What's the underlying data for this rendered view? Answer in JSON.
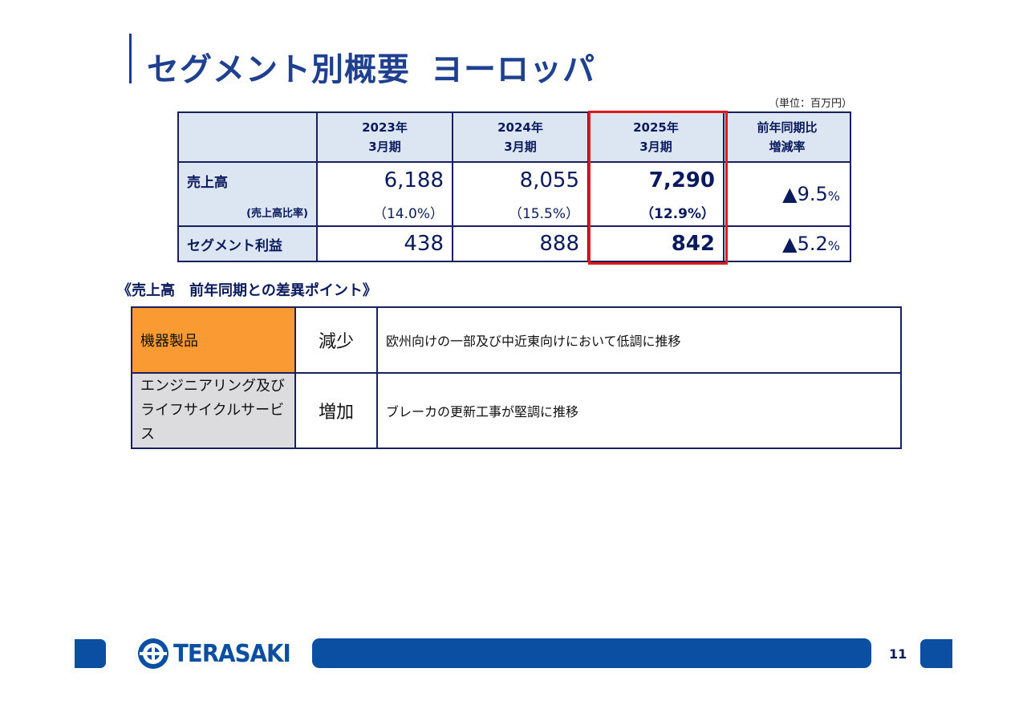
{
  "title": {
    "main": "セグメント別概要",
    "sub": "ヨーロッパ"
  },
  "unit_note": "（単位：百万円）",
  "table": {
    "headers": [
      {
        "line1": "2023年",
        "line2": "3月期"
      },
      {
        "line1": "2024年",
        "line2": "3月期"
      },
      {
        "line1": "2025年",
        "line2": "3月期"
      },
      {
        "line1": "前年同期比",
        "line2": "増減率"
      }
    ],
    "sales": {
      "label": "売上高",
      "ratio_label": "(売上高比率)",
      "values": [
        "6,188",
        "8,055",
        "7,290"
      ],
      "ratios": [
        "（14.0%）",
        "（15.5%）",
        "（12.9%）"
      ],
      "change": "▲9.5",
      "change_unit": "%"
    },
    "profit": {
      "label": "セグメント利益",
      "values": [
        "438",
        "888",
        "842"
      ],
      "change": "▲5.2",
      "change_unit": "%"
    },
    "highlight_color": "#e01a1a"
  },
  "diff_section": {
    "heading": "《売上高　前年同期との差異ポイント》",
    "rows": [
      {
        "category": "機器製品",
        "trend": "減少",
        "description": "欧州向けの一部及び中近東向けにおいて低調に推移"
      },
      {
        "category_line1": "エンジニアリング及び",
        "category_line2": "ライフサイクルサービス",
        "trend": "増加",
        "description": "ブレーカの更新工事が堅調に推移"
      }
    ]
  },
  "footer": {
    "logo_text": "TERASAKI",
    "page_number": "11",
    "brand_color": "#0a4fa1"
  }
}
